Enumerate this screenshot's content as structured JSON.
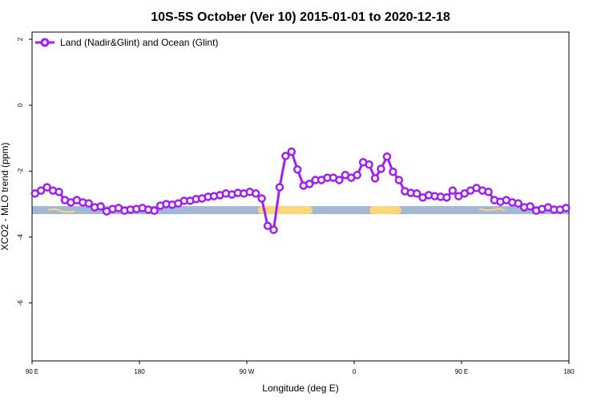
{
  "chart_data": {
    "type": "line",
    "title": "10S-5S October (Ver 10)   2015-01-01 to 2020-12-18",
    "x_label": "Longitude (deg E)",
    "y_label": "XCO2 - MLO trend (ppm)",
    "xlim": [
      90,
      540
    ],
    "ylim": [
      -7.76,
      2.22
    ],
    "xticks": [
      {
        "value": 90,
        "label": "90 E"
      },
      180,
      {
        "value": 270,
        "label": "90 W"
      },
      {
        "value": 360,
        "label": "0"
      },
      {
        "value": 450,
        "label": "90 E"
      },
      {
        "value": 540,
        "label": "180"
      }
    ],
    "yticks": [
      2,
      0,
      -2,
      -4,
      -6
    ],
    "legend": "top-left",
    "series": [
      {
        "name": "Land (Nadir&Glint) and Ocean (Glint)",
        "color": "#a020f0",
        "x": [
          92.5,
          97.5,
          102.5,
          107.5,
          112.5,
          117.5,
          122.5,
          127.5,
          132.5,
          137.5,
          142.5,
          147.5,
          152.5,
          157.5,
          162.5,
          167.5,
          172.5,
          177.5,
          182.5,
          187.5,
          192.5,
          197.5,
          202.5,
          207.5,
          212.5,
          217.5,
          222.5,
          227.5,
          232.5,
          237.5,
          242.5,
          247.5,
          252.5,
          257.5,
          262.5,
          267.5,
          272.5,
          277.5,
          282.5,
          287.5,
          292.5,
          297.5,
          302.5,
          307.5,
          312.5,
          317.5,
          322.5,
          327.5,
          332.5,
          337.5,
          342.5,
          347.5,
          352.5,
          357.5,
          362.5,
          367.5,
          372.5,
          377.5,
          382.5,
          387.5,
          392.5,
          397.5,
          402.5,
          407.5,
          412.5,
          417.5,
          422.5,
          427.5,
          432.5,
          437.5,
          442.5,
          447.5,
          452.5,
          457.5,
          462.5,
          467.5,
          472.5,
          477.5,
          482.5,
          487.5,
          492.5,
          497.5,
          502.5,
          507.5,
          512.5,
          517.5,
          522.5,
          527.5,
          532.5,
          537.5
        ],
        "values": [
          -2.68,
          -2.59,
          -2.49,
          -2.59,
          -2.63,
          -2.88,
          -2.95,
          -2.88,
          -2.95,
          -2.98,
          -3.1,
          -3.07,
          -3.22,
          -3.15,
          -3.12,
          -3.2,
          -3.17,
          -3.15,
          -3.12,
          -3.17,
          -3.2,
          -3.05,
          -3.0,
          -3.02,
          -2.98,
          -2.9,
          -2.9,
          -2.85,
          -2.83,
          -2.78,
          -2.76,
          -2.73,
          -2.68,
          -2.71,
          -2.66,
          -2.68,
          -2.63,
          -2.68,
          -2.83,
          -3.66,
          -3.78,
          -2.49,
          -1.54,
          -1.41,
          -1.95,
          -2.44,
          -2.39,
          -2.27,
          -2.27,
          -2.2,
          -2.2,
          -2.27,
          -2.12,
          -2.2,
          -2.12,
          -1.73,
          -1.8,
          -2.22,
          -1.93,
          -1.56,
          -2.02,
          -2.27,
          -2.61,
          -2.66,
          -2.68,
          -2.8,
          -2.73,
          -2.76,
          -2.78,
          -2.8,
          -2.59,
          -2.76,
          -2.68,
          -2.59,
          -2.51,
          -2.59,
          -2.63,
          -2.88,
          -2.93,
          -2.88,
          -2.95,
          -2.98,
          -3.1,
          -3.07,
          -3.2,
          -3.15,
          -3.1,
          -3.17,
          -3.17,
          -3.12
        ]
      }
    ]
  }
}
